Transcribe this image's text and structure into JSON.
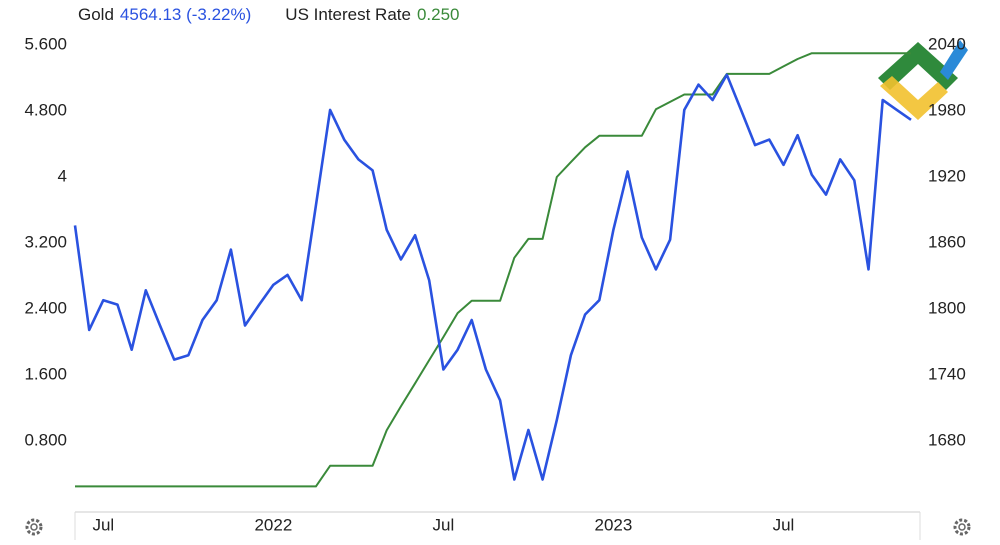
{
  "chart_data": {
    "type": "line",
    "categories": [
      null,
      null,
      "Jul",
      null,
      null,
      null,
      null,
      null,
      null,
      null,
      null,
      null,
      null,
      null,
      "2022",
      null,
      null,
      null,
      null,
      null,
      null,
      null,
      null,
      null,
      null,
      null,
      "Jul",
      null,
      null,
      null,
      null,
      null,
      null,
      null,
      null,
      null,
      null,
      null,
      "2023",
      null,
      null,
      null,
      null,
      null,
      null,
      null,
      null,
      null,
      null,
      null,
      "Jul",
      null,
      null,
      null,
      null,
      null,
      null,
      null,
      null,
      null
    ],
    "series": [
      {
        "name": "Gold",
        "legend_value": "4564.13 (-3.22%)",
        "color": "#2a52e0",
        "axis": "y2",
        "values": [
          1876,
          1781,
          1808,
          1804,
          1763,
          1817,
          1785,
          1754,
          1758,
          1790,
          1808,
          1854,
          1785,
          1804,
          1822,
          1831,
          1808,
          1894,
          1981,
          1954,
          1936,
          1926,
          1872,
          1845,
          1867,
          1826,
          1745,
          1763,
          1790,
          1745,
          1717,
          1645,
          1690,
          1645,
          1699,
          1758,
          1795,
          1808,
          1872,
          1925,
          1865,
          1836,
          1863,
          1981,
          2004,
          1990,
          2013,
          1981,
          1949,
          1954,
          1931,
          1958,
          1922,
          1904,
          1936,
          1917,
          1836,
          1990,
          1981,
          1972
        ]
      },
      {
        "name": "US Interest Rate",
        "legend_value": "0.250",
        "color": "#3a8a3a",
        "axis": "y",
        "values": [
          0.25,
          0.25,
          0.25,
          0.25,
          0.25,
          0.25,
          0.25,
          0.25,
          0.25,
          0.25,
          0.25,
          0.25,
          0.25,
          0.25,
          0.25,
          0.25,
          0.25,
          0.25,
          0.5,
          0.5,
          0.5,
          0.5,
          0.93,
          1.22,
          1.5,
          1.78,
          2.06,
          2.35,
          2.5,
          2.5,
          2.5,
          3.02,
          3.25,
          3.25,
          4.0,
          4.18,
          4.36,
          4.5,
          4.5,
          4.5,
          4.5,
          4.82,
          4.91,
          5.0,
          5.0,
          5.0,
          5.25,
          5.25,
          5.25,
          5.25,
          5.34,
          5.43,
          5.5,
          5.5,
          5.5,
          5.5,
          5.5,
          5.5,
          5.5,
          5.5
        ]
      }
    ],
    "ylim": [
      0,
      5.6
    ],
    "yticks": [
      {
        "value": 0.8,
        "label": "0.800"
      },
      {
        "value": 1.6,
        "label": "1.600"
      },
      {
        "value": 2.4,
        "label": "2.400"
      },
      {
        "value": 3.2,
        "label": "3.200"
      },
      4,
      {
        "value": 4.8,
        "label": "4.800"
      },
      {
        "value": 5.6,
        "label": "5.600"
      }
    ],
    "y2lim": [
      1620,
      2040
    ],
    "y2ticks": [
      1680,
      1740,
      1800,
      1860,
      1920,
      1980,
      2040
    ]
  }
}
